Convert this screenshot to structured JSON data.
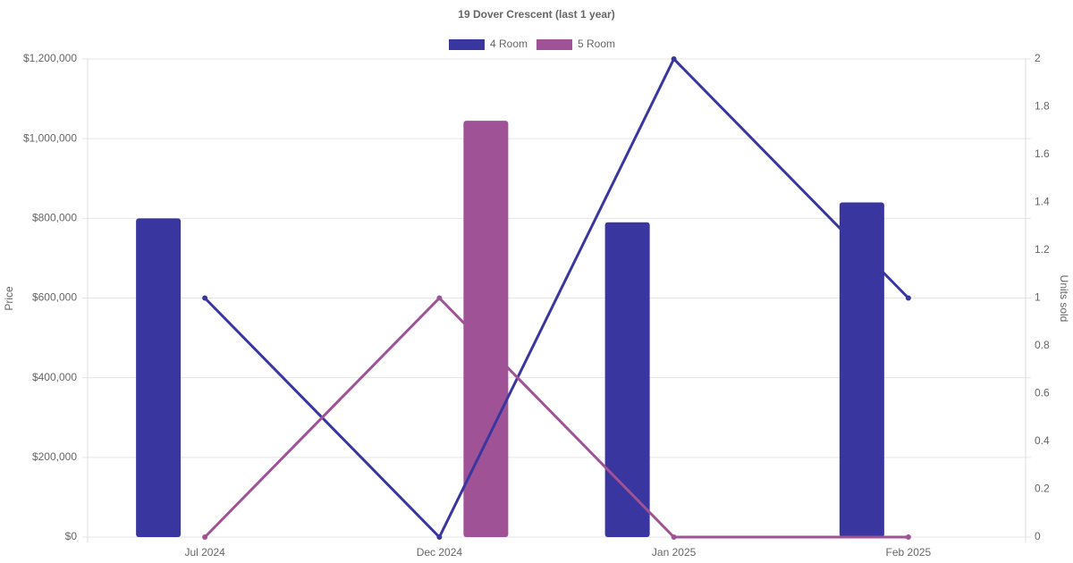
{
  "chart_data": {
    "type": "bar-line",
    "title": "19 Dover Crescent (last 1 year)",
    "categories": [
      "Jul 2024",
      "Dec 2024",
      "Jan 2025",
      "Feb 2025"
    ],
    "series": [
      {
        "name": "4 Room",
        "color": "#3a36a0",
        "values": [
          800000,
          null,
          790000,
          840000
        ],
        "units": [
          1,
          0,
          2,
          1
        ]
      },
      {
        "name": "5 Room",
        "color": "#a05296",
        "values": [
          null,
          1045000,
          null,
          null
        ],
        "units": [
          0,
          1,
          0,
          0
        ]
      }
    ],
    "ylabel": "Price",
    "y2label": "Units sold",
    "ylim": [
      0,
      1200000
    ],
    "yticks": [
      {
        "value": 0,
        "label": "$0"
      },
      {
        "value": 200000,
        "label": "$200,000"
      },
      {
        "value": 400000,
        "label": "$400,000"
      },
      {
        "value": 600000,
        "label": "$600,000"
      },
      {
        "value": 800000,
        "label": "$800,000"
      },
      {
        "value": 1000000,
        "label": "$1,000,000"
      },
      {
        "value": 1200000,
        "label": "$1,200,000"
      }
    ],
    "y2lim": [
      0,
      2
    ],
    "y2ticks": [
      0,
      0.2,
      0.4,
      0.6,
      0.8,
      1,
      1.2,
      1.4,
      1.6,
      1.8,
      2
    ],
    "grid": true,
    "legend": "top"
  }
}
